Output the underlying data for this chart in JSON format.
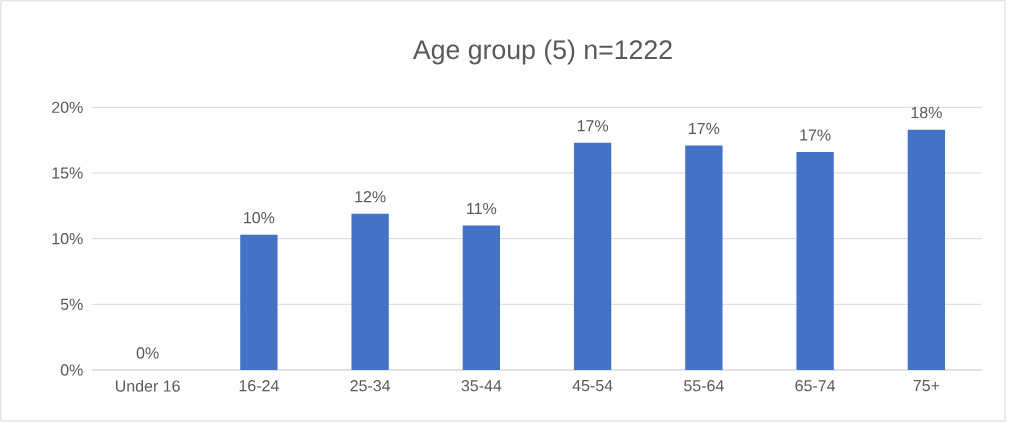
{
  "chart_data": {
    "type": "bar",
    "title": "Age group (5) n=1222",
    "categories": [
      "Under 16",
      "16-24",
      "25-34",
      "35-44",
      "45-54",
      "55-64",
      "65-74",
      "75+"
    ],
    "values": [
      0,
      10.3,
      11.9,
      11.0,
      17.3,
      17.1,
      16.6,
      18.3
    ],
    "value_labels": [
      "0%",
      "10%",
      "12%",
      "11%",
      "17%",
      "17%",
      "17%",
      "18%"
    ],
    "color": "#4472c4",
    "ylim": [
      0,
      20
    ],
    "yticks": [
      {
        "value": 0,
        "label": "0%"
      },
      {
        "value": 5,
        "label": "5%"
      },
      {
        "value": 10,
        "label": "10%"
      },
      {
        "value": 15,
        "label": "15%"
      },
      {
        "value": 20,
        "label": "20%"
      }
    ],
    "grid": "y"
  }
}
